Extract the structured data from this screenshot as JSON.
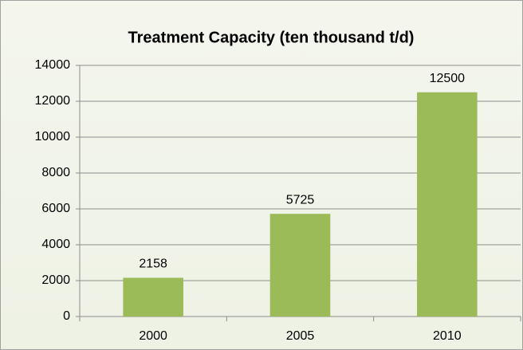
{
  "chart_data": {
    "type": "bar",
    "title": "Treatment Capacity (ten thousand t/d)",
    "categories": [
      "2000",
      "2005",
      "2010"
    ],
    "values": [
      2158,
      5725,
      12500
    ],
    "color": "#9bbb59",
    "ylim": [
      0,
      14000
    ],
    "yticks": [
      0,
      2000,
      4000,
      6000,
      8000,
      10000,
      12000,
      14000
    ],
    "grid": true,
    "data_labels": true
  }
}
